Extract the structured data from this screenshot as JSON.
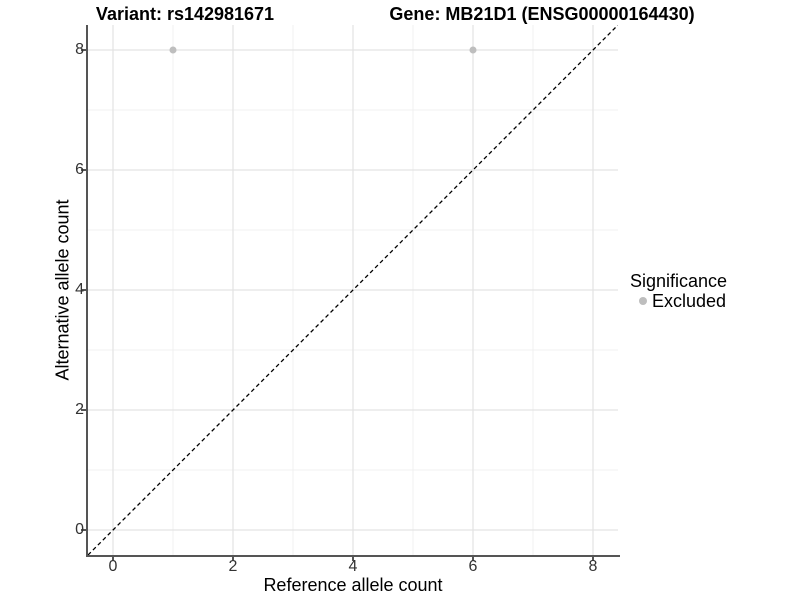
{
  "figure": {
    "title_variant": "Variant: rs142981671",
    "title_gene": "Gene: MB21D1 (ENSG00000164430)"
  },
  "chart_data": {
    "type": "scatter",
    "titles": [
      "Variant: rs142981671",
      "Gene: MB21D1 (ENSG00000164430)"
    ],
    "xlabel": "Reference allele count",
    "ylabel": "Alternative allele count",
    "xlim": [
      -0.42,
      8.42
    ],
    "ylim": [
      -0.42,
      8.42
    ],
    "x_major_ticks": [
      0,
      2,
      4,
      6,
      8
    ],
    "y_major_ticks": [
      0,
      2,
      4,
      6,
      8
    ],
    "x_minor_ticks": [
      1,
      3,
      5,
      7
    ],
    "y_minor_ticks": [
      1,
      3,
      5,
      7
    ],
    "grid": "on",
    "series": [
      {
        "name": "Excluded",
        "marker": "circle",
        "color": "#bebebe",
        "points": [
          [
            1,
            8
          ],
          [
            6,
            8
          ]
        ]
      }
    ],
    "reference_line": {
      "type": "identity",
      "slope": 1,
      "intercept": 0,
      "style": "dashed",
      "color": "#000000"
    },
    "legend": {
      "title": "Significance",
      "position": "right",
      "entries": [
        {
          "label": "Excluded",
          "color": "#bebebe"
        }
      ]
    }
  },
  "colors": {
    "background": "#ffffff",
    "grid_major": "#e3e3e3",
    "grid_minor": "#f0f0f0",
    "axis_line": "#555555",
    "tick_text": "#333333",
    "title_text": "#000000",
    "point": "#bebebe"
  }
}
